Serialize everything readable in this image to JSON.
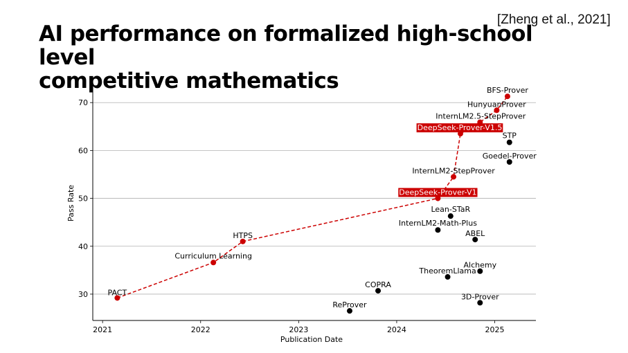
{
  "slide": {
    "citation": "[Zheng et al., 2021]",
    "title_line1": "AI performance on formalized high-school level",
    "title_line2": "competitive mathematics"
  },
  "colors": {
    "frontier": "#cc0000",
    "other": "#000000",
    "grid": "#b0b0b0",
    "label_box": "#cc0000"
  },
  "chart_data": {
    "type": "scatter",
    "xlabel": "Publication Date",
    "ylabel": "Pass Rate",
    "xlim": [
      2020.9,
      2025.42
    ],
    "ylim": [
      24.5,
      73.5
    ],
    "xticks": [
      2021,
      2022,
      2023,
      2024,
      2025
    ],
    "yticks": [
      30,
      40,
      50,
      60,
      70
    ],
    "grid": "horizontal",
    "frontier_line": "dashed",
    "series": [
      {
        "name": "frontier",
        "color": "#cc0000",
        "points": [
          {
            "label": "PACT",
            "x": 2021.15,
            "y": 29.2
          },
          {
            "label": "Curriculum Learning",
            "x": 2022.13,
            "y": 36.6
          },
          {
            "label": "HTPS",
            "x": 2022.43,
            "y": 41.0
          },
          {
            "label": "DeepSeek-Prover-V1",
            "x": 2024.42,
            "y": 50.0,
            "highlight": true
          },
          {
            "label": "InternLM2-StepProver",
            "x": 2024.58,
            "y": 54.5
          },
          {
            "label": "DeepSeek-Prover-V1.5",
            "x": 2024.65,
            "y": 63.5,
            "highlight": true
          },
          {
            "label": "InternLM2.5-StepProver",
            "x": 2024.85,
            "y": 65.9
          },
          {
            "label": "HunyuanProver",
            "x": 2025.02,
            "y": 68.4
          },
          {
            "label": "BFS-Prover",
            "x": 2025.13,
            "y": 71.3
          }
        ]
      },
      {
        "name": "other",
        "color": "#000000",
        "points": [
          {
            "label": "ReProver",
            "x": 2023.52,
            "y": 26.5
          },
          {
            "label": "COPRA",
            "x": 2023.81,
            "y": 30.7
          },
          {
            "label": "Lean-STaR",
            "x": 2024.55,
            "y": 46.3
          },
          {
            "label": "InternLM2-Math-Plus",
            "x": 2024.42,
            "y": 43.4
          },
          {
            "label": "ABEL",
            "x": 2024.8,
            "y": 41.4
          },
          {
            "label": "TheoremLlama",
            "x": 2024.52,
            "y": 33.6
          },
          {
            "label": "Alchemy",
            "x": 2024.85,
            "y": 34.8
          },
          {
            "label": "3D-Prover",
            "x": 2024.85,
            "y": 28.2
          },
          {
            "label": "STP",
            "x": 2025.15,
            "y": 61.7
          },
          {
            "label": "Goedel-Prover",
            "x": 2025.15,
            "y": 57.6
          }
        ]
      }
    ]
  }
}
